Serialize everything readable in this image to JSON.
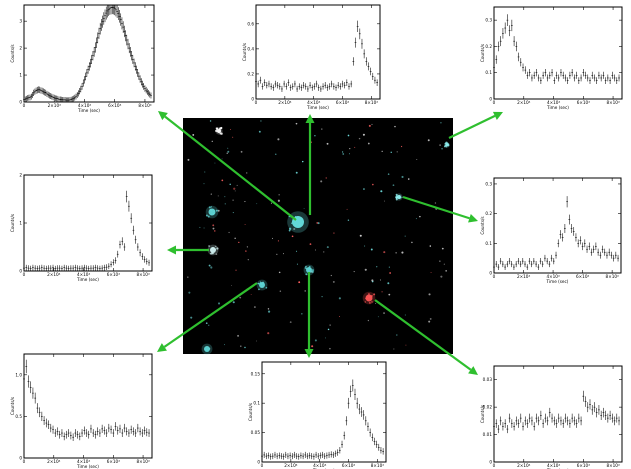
{
  "figure": {
    "central_image": {
      "sources": [
        {
          "name": "central-cluster",
          "color": "#66e0e0"
        },
        {
          "name": "source-upper-left",
          "color": "#ffffff"
        },
        {
          "name": "source-left-cyan",
          "color": "#5fd6d6"
        },
        {
          "name": "source-mid-left",
          "color": "#d0f0f0"
        },
        {
          "name": "source-lower-left",
          "color": "#5fd6d6"
        },
        {
          "name": "source-center-low",
          "color": "#5fd6d6"
        },
        {
          "name": "source-red",
          "color": "#ff5555"
        },
        {
          "name": "source-right",
          "color": "#8ff0f0"
        },
        {
          "name": "source-upper-right",
          "color": "#8ff0f0"
        }
      ]
    },
    "arrow_color": "#2fbf2f"
  },
  "chart_data": [
    {
      "panel": "top-left",
      "type": "scatter",
      "xlabel": "Time (sec)",
      "ylabel": "Counts/s",
      "x_tick_labels": [
        "0",
        "2×10⁴",
        "4×10⁴",
        "6×10⁴",
        "8×10⁴"
      ],
      "y_tick_labels": [
        "0",
        "1",
        "2",
        "3"
      ],
      "ylim": [
        0,
        3.6
      ],
      "x": [
        0,
        0.8,
        1.6,
        2.4,
        3.2,
        4,
        4.8,
        5.6,
        6.4,
        7.2,
        8,
        8.8,
        9.6,
        10.4,
        11.2,
        12,
        12.8,
        13.6,
        14.4,
        15.2,
        16,
        16.8,
        17.6,
        18.4,
        19.2,
        20,
        20.8,
        21.6,
        22.4,
        23.2,
        24,
        24.8,
        25.6,
        26.4,
        27.2,
        28,
        28.8,
        29.6,
        30.4,
        31.2,
        32,
        32.8,
        33.6,
        34.4,
        35.2,
        36,
        36.8,
        37.6,
        38.4,
        39.2,
        40,
        40.8,
        41.6,
        42.4,
        43.2,
        44,
        44.8,
        45.6,
        46.4,
        47.2,
        48,
        48.8,
        49.6,
        50.4,
        51.2,
        52,
        52.8,
        53.6,
        54.4,
        55.2,
        56,
        56.8,
        57.6,
        58.4,
        59.2,
        60,
        60.8,
        61.6,
        62.4,
        63.2,
        64,
        64.8,
        65.6,
        66.4,
        67.2,
        68,
        68.8,
        69.6,
        70.4,
        71.2,
        72,
        72.8,
        73.6,
        74.4,
        75.2,
        76,
        76.8,
        77.6,
        78.4,
        79.2,
        80,
        80.8,
        81.6,
        82.4,
        83.2,
        84
      ],
      "values": [
        0.1,
        0.1,
        0.12,
        0.15,
        0.16,
        0.17,
        0.2,
        0.26,
        0.34,
        0.38,
        0.42,
        0.44,
        0.46,
        0.45,
        0.43,
        0.41,
        0.39,
        0.36,
        0.34,
        0.3,
        0.27,
        0.24,
        0.22,
        0.2,
        0.18,
        0.16,
        0.14,
        0.13,
        0.12,
        0.1,
        0.1,
        0.09,
        0.08,
        0.08,
        0.08,
        0.07,
        0.07,
        0.07,
        0.08,
        0.09,
        0.11,
        0.13,
        0.16,
        0.2,
        0.26,
        0.32,
        0.4,
        0.48,
        0.58,
        0.7,
        0.82,
        0.95,
        1.08,
        1.2,
        1.32,
        1.44,
        1.58,
        1.72,
        1.86,
        2.02,
        2.2,
        2.38,
        2.55,
        2.72,
        2.86,
        2.98,
        3.1,
        3.2,
        3.3,
        3.38,
        3.44,
        3.48,
        3.5,
        3.51,
        3.5,
        3.47,
        3.42,
        3.36,
        3.28,
        3.18,
        3.06,
        2.92,
        2.78,
        2.62,
        2.46,
        2.3,
        2.15,
        2.0,
        1.86,
        1.72,
        1.58,
        1.45,
        1.32,
        1.2,
        1.08,
        0.96,
        0.85,
        0.75,
        0.66,
        0.58,
        0.5,
        0.44,
        0.38,
        0.33,
        0.28,
        0.24
      ]
    },
    {
      "panel": "top-center",
      "type": "scatter",
      "xlabel": "Time (sec)",
      "ylabel": "Counts/s",
      "x_tick_labels": [
        "0",
        "2×10⁴",
        "4×10⁴",
        "6×10⁴",
        "8×10⁴"
      ],
      "y_tick_labels": [
        "0",
        "0.2",
        "0.4",
        "0.6"
      ],
      "ylim": [
        0,
        0.75
      ],
      "x": [
        0,
        1.5,
        3,
        4.5,
        6,
        7.5,
        9,
        10.5,
        12,
        13.5,
        15,
        16.5,
        18,
        19.5,
        21,
        22.5,
        24,
        25.5,
        27,
        28.5,
        30,
        31.5,
        33,
        34.5,
        36,
        37.5,
        39,
        40.5,
        42,
        43.5,
        45,
        46.5,
        48,
        49.5,
        51,
        52.5,
        54,
        55.5,
        57,
        58.5,
        60,
        61.5,
        63,
        64.5,
        66,
        67.5,
        69,
        70.5,
        72,
        73.5,
        75,
        76.5,
        78,
        79.5,
        81,
        82.5,
        84
      ],
      "values": [
        0.14,
        0.12,
        0.15,
        0.1,
        0.13,
        0.11,
        0.12,
        0.1,
        0.09,
        0.12,
        0.11,
        0.1,
        0.08,
        0.12,
        0.1,
        0.13,
        0.09,
        0.1,
        0.12,
        0.08,
        0.1,
        0.09,
        0.11,
        0.1,
        0.08,
        0.11,
        0.09,
        0.1,
        0.12,
        0.09,
        0.08,
        0.1,
        0.11,
        0.09,
        0.1,
        0.12,
        0.1,
        0.09,
        0.11,
        0.1,
        0.12,
        0.11,
        0.13,
        0.1,
        0.12,
        0.3,
        0.45,
        0.58,
        0.52,
        0.44,
        0.36,
        0.3,
        0.26,
        0.22,
        0.18,
        0.15,
        0.13
      ]
    },
    {
      "panel": "top-right",
      "type": "scatter",
      "xlabel": "Time (sec)",
      "ylabel": "Counts/s",
      "x_tick_labels": [
        "0",
        "2×10⁴",
        "4×10⁴",
        "6×10⁴",
        "8×10⁴"
      ],
      "y_tick_labels": [
        "0",
        "0.1",
        "0.2",
        "0.3"
      ],
      "ylim": [
        0,
        0.35
      ],
      "x": [
        0,
        1.5,
        3,
        4.5,
        6,
        7.5,
        9,
        10.5,
        12,
        13.5,
        15,
        16.5,
        18,
        19.5,
        21,
        22.5,
        24,
        25.5,
        27,
        28.5,
        30,
        31.5,
        33,
        34.5,
        36,
        37.5,
        39,
        40.5,
        42,
        43.5,
        45,
        46.5,
        48,
        49.5,
        51,
        52.5,
        54,
        55.5,
        57,
        58.5,
        60,
        61.5,
        63,
        64.5,
        66,
        67.5,
        69,
        70.5,
        72,
        73.5,
        75,
        76.5,
        78,
        79.5,
        81,
        82.5,
        84
      ],
      "values": [
        0.12,
        0.15,
        0.2,
        0.22,
        0.25,
        0.27,
        0.3,
        0.26,
        0.28,
        0.22,
        0.2,
        0.16,
        0.14,
        0.12,
        0.11,
        0.09,
        0.1,
        0.08,
        0.09,
        0.1,
        0.08,
        0.07,
        0.09,
        0.1,
        0.08,
        0.09,
        0.1,
        0.07,
        0.09,
        0.08,
        0.1,
        0.09,
        0.08,
        0.07,
        0.09,
        0.1,
        0.08,
        0.09,
        0.07,
        0.08,
        0.1,
        0.09,
        0.08,
        0.07,
        0.09,
        0.08,
        0.07,
        0.09,
        0.08,
        0.09,
        0.07,
        0.08,
        0.07,
        0.09,
        0.08,
        0.07,
        0.08
      ]
    },
    {
      "panel": "mid-left",
      "type": "scatter",
      "xlabel": "Time (sec)",
      "ylabel": "Counts/s",
      "x_tick_labels": [
        "0",
        "2×10⁴",
        "4×10⁴",
        "6×10⁴",
        "8×10⁴"
      ],
      "y_tick_labels": [
        "0",
        "1",
        "2"
      ],
      "ylim": [
        0,
        2.0
      ],
      "x": [
        0,
        1.5,
        3,
        4.5,
        6,
        7.5,
        9,
        10.5,
        12,
        13.5,
        15,
        16.5,
        18,
        19.5,
        21,
        22.5,
        24,
        25.5,
        27,
        28.5,
        30,
        31.5,
        33,
        34.5,
        36,
        37.5,
        39,
        40.5,
        42,
        43.5,
        45,
        46.5,
        48,
        49.5,
        51,
        52.5,
        54,
        55.5,
        57,
        58.5,
        60,
        61.5,
        63,
        64.5,
        66,
        67.5,
        69,
        70.5,
        72,
        73.5,
        75,
        76.5,
        78,
        79.5,
        81,
        82.5,
        84
      ],
      "values": [
        0.06,
        0.07,
        0.06,
        0.05,
        0.07,
        0.06,
        0.05,
        0.06,
        0.07,
        0.06,
        0.05,
        0.06,
        0.06,
        0.07,
        0.05,
        0.06,
        0.06,
        0.05,
        0.07,
        0.06,
        0.05,
        0.06,
        0.06,
        0.07,
        0.06,
        0.05,
        0.06,
        0.07,
        0.06,
        0.05,
        0.06,
        0.06,
        0.07,
        0.06,
        0.05,
        0.06,
        0.07,
        0.08,
        0.1,
        0.14,
        0.18,
        0.22,
        0.35,
        0.55,
        0.62,
        0.5,
        1.55,
        1.35,
        1.1,
        0.85,
        0.65,
        0.5,
        0.38,
        0.3,
        0.24,
        0.2,
        0.17
      ]
    },
    {
      "panel": "mid-right",
      "type": "scatter",
      "xlabel": "Time (sec)",
      "ylabel": "Counts/s",
      "x_tick_labels": [
        "0",
        "2×10⁴",
        "4×10⁴",
        "6×10⁴",
        "8×10⁴"
      ],
      "y_tick_labels": [
        "0",
        "0.1",
        "0.2",
        "0.3"
      ],
      "ylim": [
        0,
        0.32
      ],
      "x": [
        0,
        1.5,
        3,
        4.5,
        6,
        7.5,
        9,
        10.5,
        12,
        13.5,
        15,
        16.5,
        18,
        19.5,
        21,
        22.5,
        24,
        25.5,
        27,
        28.5,
        30,
        31.5,
        33,
        34.5,
        36,
        37.5,
        39,
        40.5,
        42,
        43.5,
        45,
        46.5,
        48,
        49.5,
        51,
        52.5,
        54,
        55.5,
        57,
        58.5,
        60,
        61.5,
        63,
        64.5,
        66,
        67.5,
        69,
        70.5,
        72,
        73.5,
        75,
        76.5,
        78,
        79.5,
        81,
        82.5,
        84
      ],
      "values": [
        0.02,
        0.03,
        0.02,
        0.04,
        0.03,
        0.02,
        0.03,
        0.04,
        0.03,
        0.02,
        0.03,
        0.04,
        0.03,
        0.04,
        0.03,
        0.02,
        0.04,
        0.03,
        0.04,
        0.03,
        0.02,
        0.04,
        0.03,
        0.05,
        0.04,
        0.03,
        0.05,
        0.04,
        0.06,
        0.1,
        0.13,
        0.12,
        0.15,
        0.24,
        0.18,
        0.15,
        0.14,
        0.12,
        0.1,
        0.11,
        0.09,
        0.1,
        0.08,
        0.09,
        0.07,
        0.08,
        0.09,
        0.07,
        0.06,
        0.08,
        0.07,
        0.06,
        0.07,
        0.06,
        0.05,
        0.06,
        0.05
      ]
    },
    {
      "panel": "bottom-left",
      "type": "scatter",
      "xlabel": "Time (sec)",
      "ylabel": "Counts/s",
      "x_tick_labels": [
        "0",
        "2×10⁴",
        "4×10⁴",
        "6×10⁴",
        "8×10⁴"
      ],
      "y_tick_labels": [
        "0",
        "0.5",
        "1.0"
      ],
      "ylim": [
        0,
        1.25
      ],
      "x": [
        0,
        1.5,
        3,
        4.5,
        6,
        7.5,
        9,
        10.5,
        12,
        13.5,
        15,
        16.5,
        18,
        19.5,
        21,
        22.5,
        24,
        25.5,
        27,
        28.5,
        30,
        31.5,
        33,
        34.5,
        36,
        37.5,
        39,
        40.5,
        42,
        43.5,
        45,
        46.5,
        48,
        49.5,
        51,
        52.5,
        54,
        55.5,
        57,
        58.5,
        60,
        61.5,
        63,
        64.5,
        66,
        67.5,
        69,
        70.5,
        72,
        73.5,
        75,
        76.5,
        78,
        79.5,
        81,
        82.5,
        84
      ],
      "values": [
        0.95,
        1.1,
        0.92,
        0.85,
        0.78,
        0.72,
        0.6,
        0.55,
        0.5,
        0.45,
        0.42,
        0.4,
        0.36,
        0.34,
        0.3,
        0.32,
        0.28,
        0.3,
        0.26,
        0.28,
        0.3,
        0.27,
        0.25,
        0.3,
        0.28,
        0.26,
        0.3,
        0.33,
        0.3,
        0.28,
        0.35,
        0.3,
        0.28,
        0.32,
        0.3,
        0.35,
        0.33,
        0.3,
        0.36,
        0.34,
        0.3,
        0.38,
        0.33,
        0.35,
        0.3,
        0.36,
        0.32,
        0.3,
        0.34,
        0.32,
        0.3,
        0.36,
        0.32,
        0.3,
        0.33,
        0.31,
        0.3
      ]
    },
    {
      "panel": "bottom-center",
      "type": "scatter",
      "xlabel": "Time (sec)",
      "ylabel": "Counts/s",
      "x_tick_labels": [
        "0",
        "2×10⁴",
        "4×10⁴",
        "6×10⁴",
        "8×10⁴"
      ],
      "y_tick_labels": [
        "0",
        "0.05",
        "0.1",
        "0.15"
      ],
      "ylim": [
        0,
        0.17
      ],
      "x": [
        0,
        1.5,
        3,
        4.5,
        6,
        7.5,
        9,
        10.5,
        12,
        13.5,
        15,
        16.5,
        18,
        19.5,
        21,
        22.5,
        24,
        25.5,
        27,
        28.5,
        30,
        31.5,
        33,
        34.5,
        36,
        37.5,
        39,
        40.5,
        42,
        43.5,
        45,
        46.5,
        48,
        49.5,
        51,
        52.5,
        54,
        55.5,
        57,
        58.5,
        60,
        61.5,
        63,
        64.5,
        66,
        67.5,
        69,
        70.5,
        72,
        73.5,
        75,
        76.5,
        78,
        79.5,
        81,
        82.5,
        84
      ],
      "values": [
        0.01,
        0.012,
        0.01,
        0.011,
        0.009,
        0.01,
        0.012,
        0.01,
        0.011,
        0.01,
        0.009,
        0.012,
        0.01,
        0.011,
        0.01,
        0.012,
        0.01,
        0.009,
        0.011,
        0.01,
        0.012,
        0.01,
        0.011,
        0.01,
        0.009,
        0.012,
        0.01,
        0.011,
        0.012,
        0.01,
        0.011,
        0.012,
        0.013,
        0.012,
        0.014,
        0.016,
        0.02,
        0.03,
        0.045,
        0.07,
        0.1,
        0.12,
        0.13,
        0.115,
        0.1,
        0.09,
        0.085,
        0.08,
        0.07,
        0.06,
        0.05,
        0.042,
        0.035,
        0.03,
        0.025,
        0.02,
        0.018
      ]
    },
    {
      "panel": "bottom-right",
      "type": "scatter",
      "xlabel": "Time (sec)",
      "ylabel": "Counts/s",
      "x_tick_labels": [
        "0",
        "2×10⁴",
        "4×10⁴",
        "6×10⁴",
        "8×10⁴"
      ],
      "y_tick_labels": [
        "0",
        "0.01",
        "0.02",
        "0.03"
      ],
      "ylim": [
        0,
        0.035
      ],
      "x": [
        0,
        1.5,
        3,
        4.5,
        6,
        7.5,
        9,
        10.5,
        12,
        13.5,
        15,
        16.5,
        18,
        19.5,
        21,
        22.5,
        24,
        25.5,
        27,
        28.5,
        30,
        31.5,
        33,
        34.5,
        36,
        37.5,
        39,
        40.5,
        42,
        43.5,
        45,
        46.5,
        48,
        49.5,
        51,
        52.5,
        54,
        55.5,
        57,
        58.5,
        60,
        61.5,
        63,
        64.5,
        66,
        67.5,
        69,
        70.5,
        72,
        73.5,
        75,
        76.5,
        78,
        79.5,
        81,
        82.5,
        84
      ],
      "values": [
        0.013,
        0.014,
        0.012,
        0.015,
        0.013,
        0.014,
        0.012,
        0.016,
        0.014,
        0.013,
        0.015,
        0.014,
        0.016,
        0.013,
        0.015,
        0.014,
        0.016,
        0.015,
        0.013,
        0.016,
        0.015,
        0.017,
        0.014,
        0.016,
        0.015,
        0.018,
        0.016,
        0.015,
        0.014,
        0.016,
        0.015,
        0.014,
        0.016,
        0.015,
        0.014,
        0.016,
        0.015,
        0.014,
        0.016,
        0.015,
        0.024,
        0.022,
        0.02,
        0.021,
        0.019,
        0.02,
        0.018,
        0.019,
        0.017,
        0.018,
        0.017,
        0.016,
        0.017,
        0.016,
        0.015,
        0.016,
        0.015
      ]
    }
  ]
}
